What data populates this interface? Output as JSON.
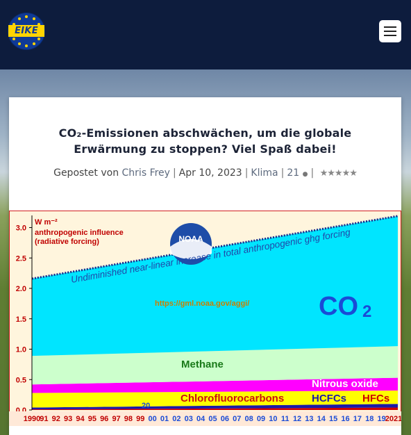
{
  "header": {
    "logo_text": "EIKE",
    "menu_icon": "hamburger-icon"
  },
  "article": {
    "title_line1": "CO₂-Emissionen abschwächen, um die globale",
    "title_line2": "Erwärmung zu stoppen? Viel Spaß dabei!",
    "posted_by_label": "Gepostet von",
    "author": "Chris Frey",
    "date": "Apr 10, 2023",
    "category": "Klima",
    "comment_count": "21",
    "rating_stars": 5
  },
  "chart_data": {
    "type": "area",
    "units": "W m⁻²",
    "title_line1": "anthropogenic influence",
    "title_line2": "(radiative forcing)",
    "trend_label": "Undiminished near-linear increase in total anthropogenic ghg forcing",
    "source_url": "https://gml.noaa.gov/aggi/",
    "badge": "NOAA",
    "x_ticks": [
      "1990",
      "91",
      "92",
      "93",
      "94",
      "95",
      "96",
      "97",
      "98",
      "99",
      "00",
      "01",
      "02",
      "03",
      "04",
      "05",
      "06",
      "07",
      "08",
      "09",
      "10",
      "11",
      "12",
      "13",
      "14",
      "15",
      "16",
      "17",
      "18",
      "19",
      "2021"
    ],
    "xlim": [
      1990,
      2021
    ],
    "ylim": [
      0,
      3.2
    ],
    "y_ticks": [
      "0.0",
      "0.5",
      "1.0",
      "1.5",
      "2.0",
      "2.5",
      "3.0"
    ],
    "y_tick_values": [
      0,
      0.5,
      1.0,
      1.5,
      2.0,
      2.5,
      3.0
    ],
    "x_years": [
      1990,
      2021
    ],
    "series": [
      {
        "name": "HFCs",
        "color": "#cc0000",
        "values": [
          0.01,
          0.04
        ]
      },
      {
        "name": "HCFCs",
        "color": "#1a1aa8",
        "values": [
          0.03,
          0.06
        ]
      },
      {
        "name": "Chlorofluorocarbons",
        "color": "#ffff00",
        "values": [
          0.24,
          0.22
        ]
      },
      {
        "name": "Nitrous oxide",
        "color": "#ff00ff",
        "values": [
          0.14,
          0.21
        ]
      },
      {
        "name": "Methane",
        "color": "#ccffcc",
        "values": [
          0.47,
          0.52
        ]
      },
      {
        "name": "CO2",
        "color": "#00e5ff",
        "values": [
          1.27,
          2.14
        ]
      }
    ],
    "inner_label": "20"
  }
}
